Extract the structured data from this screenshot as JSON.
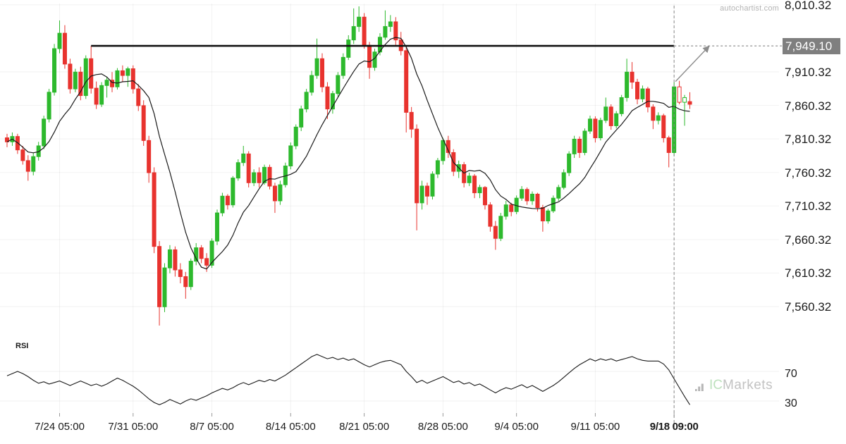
{
  "meta": {
    "watermark": "autochartist.com",
    "brand": {
      "ic": "IC",
      "markets": "Markets"
    }
  },
  "chart_data": {
    "type": "candlestick",
    "title": "",
    "legend": "none",
    "grid": "faint",
    "price_ticks": [
      8010.32,
      7910.32,
      7860.32,
      7810.32,
      7760.32,
      7710.32,
      7660.32,
      7610.32,
      7560.32
    ],
    "highlight_label": "7,949.10",
    "highlight_value": 7949.1,
    "x_ticks": [
      {
        "label": "7/24 05:00",
        "index": 10
      },
      {
        "label": "7/31 05:00",
        "index": 24
      },
      {
        "label": "8/7 05:00",
        "index": 39
      },
      {
        "label": "8/14 05:00",
        "index": 54
      },
      {
        "label": "8/21 05:00",
        "index": 68
      },
      {
        "label": "8/28 05:00",
        "index": 83
      },
      {
        "label": "9/4 05:00",
        "index": 97
      },
      {
        "label": "9/11 05:00",
        "index": 112
      },
      {
        "label": "9/18 09:00",
        "index": 127,
        "bold": true
      }
    ],
    "resistance": {
      "level": 7949.1,
      "start_index": 16,
      "end_index": 127
    },
    "arrow": {
      "from_index": 127,
      "from_price": 7896,
      "to_price": 7949.1,
      "dx": 50
    },
    "last_session_index": 127,
    "ma_window": 10,
    "hollow_indices": [
      128,
      129
    ],
    "colors": {
      "up": "#2db92d",
      "down": "#e8332e",
      "ma": "#1a1a1a",
      "line": "#111111",
      "dashed": "#777777",
      "arrow": "#8c8c8c",
      "grid": "rgba(0,0,0,0.05)",
      "axis_text": "#1b1b1b",
      "watermark": "#b3b3b3",
      "highlight_bg": "#7f7f7f",
      "brand_gray": "#a9a9a9",
      "brand_green": "#b2dcb2"
    },
    "candles": [
      [
        7812,
        7818,
        7798,
        7806
      ],
      [
        7806,
        7820,
        7800,
        7814
      ],
      [
        7814,
        7818,
        7788,
        7794
      ],
      [
        7794,
        7800,
        7772,
        7778
      ],
      [
        7778,
        7786,
        7748,
        7762
      ],
      [
        7762,
        7790,
        7756,
        7784
      ],
      [
        7784,
        7806,
        7778,
        7800
      ],
      [
        7800,
        7845,
        7795,
        7840
      ],
      [
        7840,
        7885,
        7835,
        7880
      ],
      [
        7880,
        7952,
        7875,
        7945
      ],
      [
        7945,
        7987,
        7938,
        7968
      ],
      [
        7968,
        7980,
        7915,
        7922
      ],
      [
        7922,
        7930,
        7878,
        7885
      ],
      [
        7885,
        7915,
        7880,
        7910
      ],
      [
        7910,
        7918,
        7868,
        7875
      ],
      [
        7875,
        7935,
        7870,
        7930
      ],
      [
        7930,
        7949,
        7878,
        7886
      ],
      [
        7886,
        7896,
        7855,
        7862
      ],
      [
        7862,
        7895,
        7858,
        7890
      ],
      [
        7890,
        7902,
        7872,
        7898
      ],
      [
        7898,
        7910,
        7880,
        7888
      ],
      [
        7888,
        7916,
        7884,
        7912
      ],
      [
        7912,
        7920,
        7895,
        7905
      ],
      [
        7905,
        7918,
        7888,
        7915
      ],
      [
        7915,
        7920,
        7878,
        7885
      ],
      [
        7885,
        7892,
        7852,
        7860
      ],
      [
        7860,
        7868,
        7800,
        7808
      ],
      [
        7808,
        7815,
        7745,
        7760
      ],
      [
        7760,
        7768,
        7640,
        7650
      ],
      [
        7650,
        7658,
        7532,
        7560
      ],
      [
        7560,
        7625,
        7552,
        7618
      ],
      [
        7618,
        7652,
        7610,
        7645
      ],
      [
        7645,
        7650,
        7605,
        7615
      ],
      [
        7615,
        7625,
        7595,
        7605
      ],
      [
        7605,
        7612,
        7572,
        7590
      ],
      [
        7590,
        7632,
        7585,
        7628
      ],
      [
        7628,
        7655,
        7622,
        7648
      ],
      [
        7648,
        7652,
        7625,
        7632
      ],
      [
        7632,
        7640,
        7612,
        7622
      ],
      [
        7622,
        7662,
        7618,
        7658
      ],
      [
        7658,
        7705,
        7652,
        7700
      ],
      [
        7700,
        7730,
        7695,
        7725
      ],
      [
        7725,
        7728,
        7705,
        7712
      ],
      [
        7712,
        7755,
        7708,
        7752
      ],
      [
        7752,
        7780,
        7748,
        7775
      ],
      [
        7775,
        7800,
        7770,
        7788
      ],
      [
        7788,
        7792,
        7738,
        7745
      ],
      [
        7745,
        7765,
        7740,
        7760
      ],
      [
        7760,
        7768,
        7738,
        7745
      ],
      [
        7745,
        7772,
        7742,
        7768
      ],
      [
        7768,
        7772,
        7735,
        7740
      ],
      [
        7740,
        7745,
        7700,
        7718
      ],
      [
        7718,
        7748,
        7712,
        7742
      ],
      [
        7742,
        7775,
        7738,
        7770
      ],
      [
        7770,
        7805,
        7765,
        7800
      ],
      [
        7800,
        7832,
        7795,
        7828
      ],
      [
        7828,
        7860,
        7822,
        7855
      ],
      [
        7855,
        7885,
        7850,
        7880
      ],
      [
        7880,
        7912,
        7875,
        7905
      ],
      [
        7905,
        7960,
        7900,
        7930
      ],
      [
        7930,
        7938,
        7880,
        7888
      ],
      [
        7888,
        7895,
        7840,
        7855
      ],
      [
        7855,
        7882,
        7848,
        7878
      ],
      [
        7878,
        7910,
        7872,
        7905
      ],
      [
        7905,
        7938,
        7900,
        7932
      ],
      [
        7932,
        7965,
        7928,
        7958
      ],
      [
        7958,
        8005,
        7952,
        7978
      ],
      [
        7978,
        8008,
        7970,
        7992
      ],
      [
        7992,
        7998,
        7945,
        7950
      ],
      [
        7950,
        7955,
        7900,
        7917
      ],
      [
        7917,
        7945,
        7912,
        7940
      ],
      [
        7940,
        7968,
        7935,
        7962
      ],
      [
        7962,
        8002,
        7958,
        7978
      ],
      [
        7978,
        7995,
        7970,
        7985
      ],
      [
        7985,
        7992,
        7950,
        7958
      ],
      [
        7958,
        7970,
        7935,
        7942
      ],
      [
        7942,
        7948,
        7820,
        7850
      ],
      [
        7850,
        7858,
        7812,
        7825
      ],
      [
        7825,
        7832,
        7674,
        7715
      ],
      [
        7715,
        7748,
        7705,
        7740
      ],
      [
        7740,
        7745,
        7712,
        7725
      ],
      [
        7725,
        7762,
        7720,
        7758
      ],
      [
        7758,
        7782,
        7752,
        7778
      ],
      [
        7778,
        7812,
        7772,
        7808
      ],
      [
        7808,
        7815,
        7782,
        7790
      ],
      [
        7790,
        7795,
        7755,
        7762
      ],
      [
        7762,
        7778,
        7752,
        7772
      ],
      [
        7772,
        7776,
        7738,
        7745
      ],
      [
        7745,
        7760,
        7740,
        7755
      ],
      [
        7755,
        7758,
        7722,
        7730
      ],
      [
        7730,
        7742,
        7722,
        7738
      ],
      [
        7738,
        7740,
        7705,
        7712
      ],
      [
        7712,
        7716,
        7672,
        7680
      ],
      [
        7680,
        7688,
        7645,
        7662
      ],
      [
        7662,
        7700,
        7658,
        7695
      ],
      [
        7695,
        7718,
        7690,
        7712
      ],
      [
        7712,
        7715,
        7695,
        7702
      ],
      [
        7702,
        7726,
        7698,
        7722
      ],
      [
        7722,
        7740,
        7718,
        7735
      ],
      [
        7735,
        7738,
        7712,
        7718
      ],
      [
        7718,
        7732,
        7712,
        7728
      ],
      [
        7728,
        7730,
        7702,
        7708
      ],
      [
        7708,
        7712,
        7672,
        7688
      ],
      [
        7688,
        7706,
        7684,
        7703
      ],
      [
        7703,
        7726,
        7700,
        7722
      ],
      [
        7722,
        7742,
        7718,
        7738
      ],
      [
        7738,
        7765,
        7735,
        7760
      ],
      [
        7760,
        7792,
        7755,
        7788
      ],
      [
        7788,
        7815,
        7782,
        7810
      ],
      [
        7810,
        7814,
        7782,
        7790
      ],
      [
        7790,
        7826,
        7786,
        7822
      ],
      [
        7822,
        7845,
        7818,
        7840
      ],
      [
        7840,
        7844,
        7805,
        7812
      ],
      [
        7812,
        7842,
        7808,
        7838
      ],
      [
        7838,
        7872,
        7834,
        7858
      ],
      [
        7858,
        7862,
        7824,
        7830
      ],
      [
        7830,
        7852,
        7826,
        7848
      ],
      [
        7848,
        7876,
        7844,
        7872
      ],
      [
        7872,
        7930,
        7866,
        7910
      ],
      [
        7910,
        7925,
        7885,
        7895
      ],
      [
        7895,
        7900,
        7862,
        7870
      ],
      [
        7870,
        7890,
        7865,
        7885
      ],
      [
        7885,
        7888,
        7850,
        7858
      ],
      [
        7858,
        7862,
        7825,
        7838
      ],
      [
        7838,
        7850,
        7832,
        7845
      ],
      [
        7845,
        7848,
        7805,
        7812
      ],
      [
        7812,
        7815,
        7768,
        7790
      ],
      [
        7790,
        7895,
        7785,
        7888
      ],
      [
        7888,
        7897,
        7862,
        7865
      ],
      [
        7865,
        7876,
        7830,
        7872
      ],
      [
        7866,
        7880,
        7855,
        7862
      ]
    ],
    "rsi": {
      "label": "RSI",
      "ticks": [
        70,
        30
      ],
      "values": [
        64,
        67,
        70,
        67,
        63,
        58,
        54,
        56,
        53,
        55,
        57,
        54,
        51,
        54,
        57,
        54,
        51,
        53,
        50,
        53,
        57,
        61,
        58,
        54,
        50,
        45,
        39,
        33,
        28,
        25,
        28,
        32,
        29,
        26,
        30,
        33,
        31,
        34,
        37,
        41,
        44,
        47,
        45,
        48,
        52,
        55,
        52,
        55,
        58,
        56,
        59,
        57,
        61,
        65,
        70,
        75,
        80,
        85,
        90,
        93,
        90,
        87,
        89,
        86,
        88,
        85,
        87,
        83,
        79,
        76,
        79,
        82,
        84,
        85,
        82,
        79,
        70,
        63,
        55,
        58,
        54,
        57,
        60,
        63,
        59,
        55,
        57,
        53,
        55,
        51,
        53,
        49,
        45,
        41,
        45,
        48,
        46,
        49,
        52,
        48,
        51,
        47,
        43,
        47,
        51,
        56,
        62,
        68,
        74,
        79,
        83,
        87,
        84,
        87,
        85,
        87,
        84,
        86,
        88,
        90,
        87,
        85,
        84,
        84,
        84,
        80,
        72,
        60,
        48,
        36,
        25
      ]
    }
  }
}
